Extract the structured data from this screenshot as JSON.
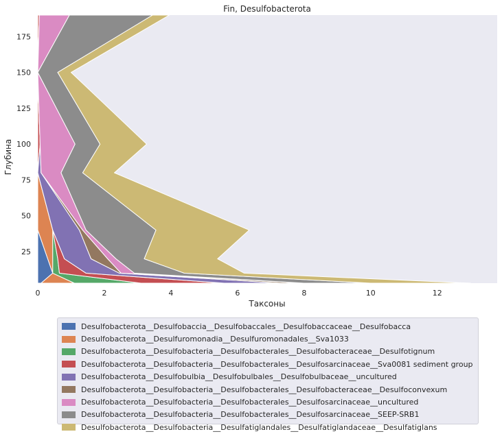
{
  "chart_data": {
    "type": "area",
    "title": "Fin, Desulfobacterota",
    "xlabel": "Таксоны",
    "ylabel": "Глубина",
    "xlim": [
      0,
      13.8
    ],
    "ylim": [
      3,
      190
    ],
    "xticks": [
      0,
      2,
      4,
      6,
      8,
      10,
      12
    ],
    "yticks": [
      25,
      50,
      75,
      100,
      125,
      150,
      175
    ],
    "grid": false,
    "orientation": "horizontal-stacked",
    "depths": [
      3,
      10,
      20,
      40,
      80,
      100,
      150,
      190
    ],
    "series": [
      {
        "name": "Desulfobacterota__Desulfobaccia__Desulfobaccales__Desulfobaccaceae__Desulfobacca",
        "color": "#4c72b0",
        "values": [
          0.1,
          0.45,
          0.3,
          0.0,
          0.0,
          0.0,
          0.0,
          0.0
        ]
      },
      {
        "name": "Desulfobacterota__Desulfuromonadia__Desulfuromonadales__Sva1033",
        "color": "#dd8452",
        "values": [
          1.0,
          0.0,
          0.15,
          0.45,
          0.0,
          0.0,
          0.0,
          0.0
        ]
      },
      {
        "name": "Desulfobacterota__Desulfobacteria__Desulfobacterales__Desulfobacteraceae__Desulfotignum",
        "color": "#55a868",
        "values": [
          2.0,
          0.2,
          0.15,
          0.0,
          0.0,
          0.0,
          0.0,
          0.0
        ]
      },
      {
        "name": "Desulfobacterota__Desulfobacteria__Desulfobacterales__Desulfosarcinaceae__Sva0081 sediment group",
        "color": "#c44e52",
        "values": [
          2.5,
          0.8,
          0.2,
          0.0,
          0.0,
          0.07,
          0.0,
          0.05
        ]
      },
      {
        "name": "Desulfobacterota__Desulfobulbia__Desulfobulbales__Desulfobulbaceae__uncultured",
        "color": "#8172b3",
        "values": [
          1.7,
          1.0,
          0.8,
          0.8,
          0.1,
          0.0,
          0.0,
          0.0
        ]
      },
      {
        "name": "Desulfobacterota__Desulfobacteria__Desulfobacterales__Desulfobacteraceae__Desulfoconvexum",
        "color": "#937860",
        "values": [
          0.7,
          0.05,
          0.5,
          0.1,
          0.0,
          0.0,
          0.0,
          0.0
        ]
      },
      {
        "name": "Desulfobacterota__Desulfobacteria__Desulfobacterales__Desulfosarcinaceae__uncultured",
        "color": "#da8bc3",
        "values": [
          0.0,
          0.4,
          0.25,
          0.1,
          0.6,
          1.05,
          0.0,
          0.9
        ]
      },
      {
        "name": "Desulfobacterota__Desulfobacteria__Desulfobacterales__Desulfosarcinaceae__SEEP-SRB1",
        "color": "#8c8c8c",
        "values": [
          2.0,
          1.5,
          0.85,
          2.1,
          0.65,
          0.75,
          0.6,
          2.5
        ]
      },
      {
        "name": "Desulfobacterota__Desulfobacteria__Desulfatiglandales__Desulfatiglandaceae__Desulfatiglans",
        "color": "#ccb974",
        "values": [
          3.0,
          1.8,
          2.2,
          2.8,
          0.95,
          1.4,
          0.4,
          0.5
        ]
      }
    ]
  }
}
